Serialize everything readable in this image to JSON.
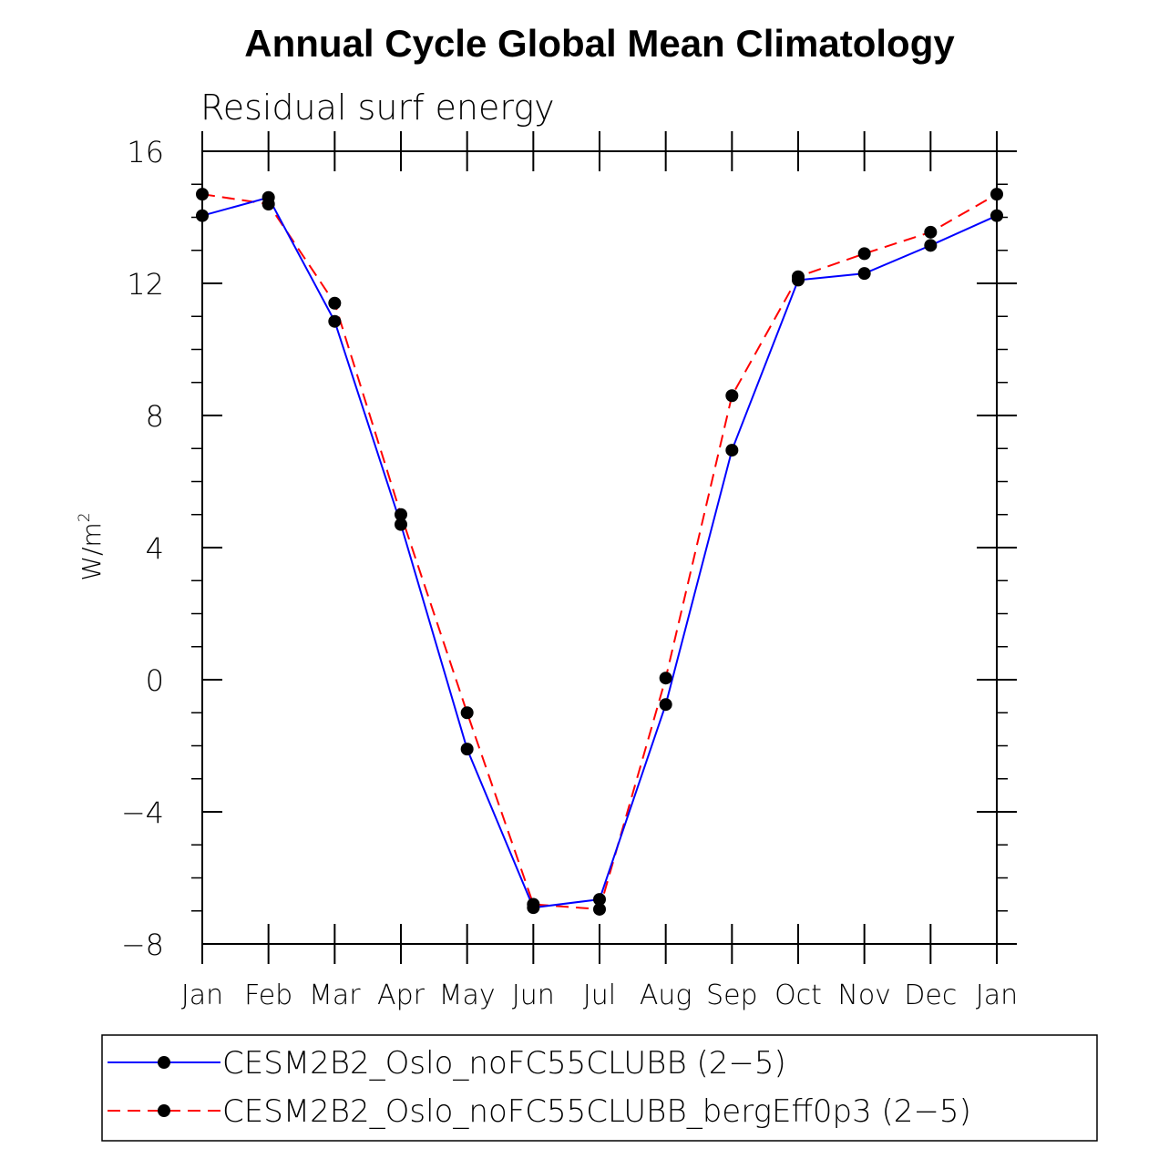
{
  "chart_data": {
    "type": "line",
    "title": "Annual Cycle Global Mean Climatology",
    "subtitle": "Residual surf energy",
    "xlabel": "",
    "ylabel_base": "W/m",
    "ylabel_sup": "2",
    "ylim": [
      -8,
      16
    ],
    "yticks": [
      -8,
      -4,
      0,
      4,
      8,
      12,
      16
    ],
    "ytick_labels": [
      "−8",
      "−4",
      "0",
      "4",
      "8",
      "12",
      "16"
    ],
    "categories": [
      "Jan",
      "Feb",
      "Mar",
      "Apr",
      "May",
      "Jun",
      "Jul",
      "Aug",
      "Sep",
      "Oct",
      "Nov",
      "Dec",
      "Jan"
    ],
    "legend_position": "bottom",
    "series": [
      {
        "name": "CESM2B2_Oslo_noFC55CLUBB (2−5)",
        "color": "#0000ff",
        "dash": "solid",
        "values": [
          14.05,
          14.6,
          10.85,
          4.7,
          -2.1,
          -6.9,
          -6.65,
          -0.75,
          6.95,
          12.1,
          12.3,
          13.15,
          14.05
        ]
      },
      {
        "name": "CESM2B2_Oslo_noFC55CLUBB_bergEff0p3 (2−5)",
        "color": "#ff0000",
        "dash": "dashed",
        "values": [
          14.7,
          14.4,
          11.4,
          5.0,
          -1.0,
          -6.8,
          -6.95,
          0.05,
          8.6,
          12.2,
          12.9,
          13.55,
          14.7
        ]
      }
    ]
  }
}
